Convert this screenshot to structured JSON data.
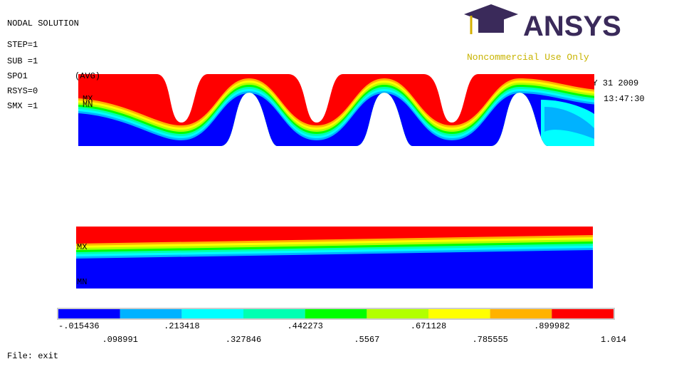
{
  "header": {
    "title": "NODAL SOLUTION",
    "info": [
      "STEP=1",
      "SUB =1",
      "SPO1",
      "RSYS=0",
      "SMX =1"
    ],
    "avg": "(AVG)",
    "date": "MAY 31 2009",
    "time": "13:47:30"
  },
  "logo": {
    "name": "ANSYS",
    "license": "Noncommercial Use Only"
  },
  "plot_markers": {
    "top": {
      "max": "MX",
      "min": "MN"
    },
    "bottom": {
      "max": "MX",
      "min": "MN"
    }
  },
  "legend": {
    "colors": [
      "#0000ff",
      "#00b2ff",
      "#00ffff",
      "#00ffb2",
      "#00ff00",
      "#b2ff00",
      "#ffff00",
      "#ffb200",
      "#ff0000"
    ],
    "labels": [
      "-.015436",
      ".098991",
      ".213418",
      ".327846",
      ".442273",
      ".5567",
      ".671128",
      ".785555",
      ".899982",
      "1.014"
    ]
  },
  "footer": "File: exit"
}
